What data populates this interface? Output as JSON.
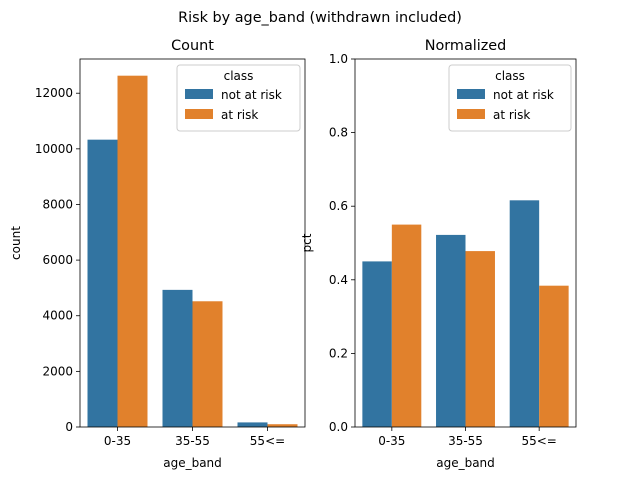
{
  "figure": {
    "suptitle": "Risk by age_band (withdrawn included)"
  },
  "colors": {
    "not at risk": "#3274a1",
    "at risk": "#e1812c"
  },
  "chart_data": [
    {
      "type": "bar",
      "title": "Count",
      "xlabel": "age_band",
      "ylabel": "count",
      "categories": [
        "0-35",
        "35-55",
        "55<="
      ],
      "ylim": [
        0,
        13230
      ],
      "yticks": [
        0,
        2000,
        4000,
        6000,
        8000,
        10000,
        12000
      ],
      "ytick_labels": [
        "0",
        "2000",
        "4000",
        "6000",
        "8000",
        "10000",
        "12000"
      ],
      "legend": {
        "title": "class",
        "placement": "upper right"
      },
      "series": [
        {
          "name": "not at risk",
          "values": [
            10330,
            4930,
            165
          ]
        },
        {
          "name": "at risk",
          "values": [
            12630,
            4520,
            100
          ]
        }
      ]
    },
    {
      "type": "bar",
      "title": "Normalized",
      "xlabel": "age_band",
      "ylabel": "pct",
      "categories": [
        "0-35",
        "35-55",
        "55<="
      ],
      "ylim": [
        0,
        1.0
      ],
      "yticks": [
        0,
        0.2,
        0.4,
        0.6,
        0.8,
        1.0
      ],
      "ytick_labels": [
        "0.0",
        "0.2",
        "0.4",
        "0.6",
        "0.8",
        "1.0"
      ],
      "legend": {
        "title": "class",
        "placement": "upper right"
      },
      "series": [
        {
          "name": "not at risk",
          "values": [
            0.45,
            0.522,
            0.616
          ]
        },
        {
          "name": "at risk",
          "values": [
            0.55,
            0.478,
            0.384
          ]
        }
      ]
    }
  ]
}
